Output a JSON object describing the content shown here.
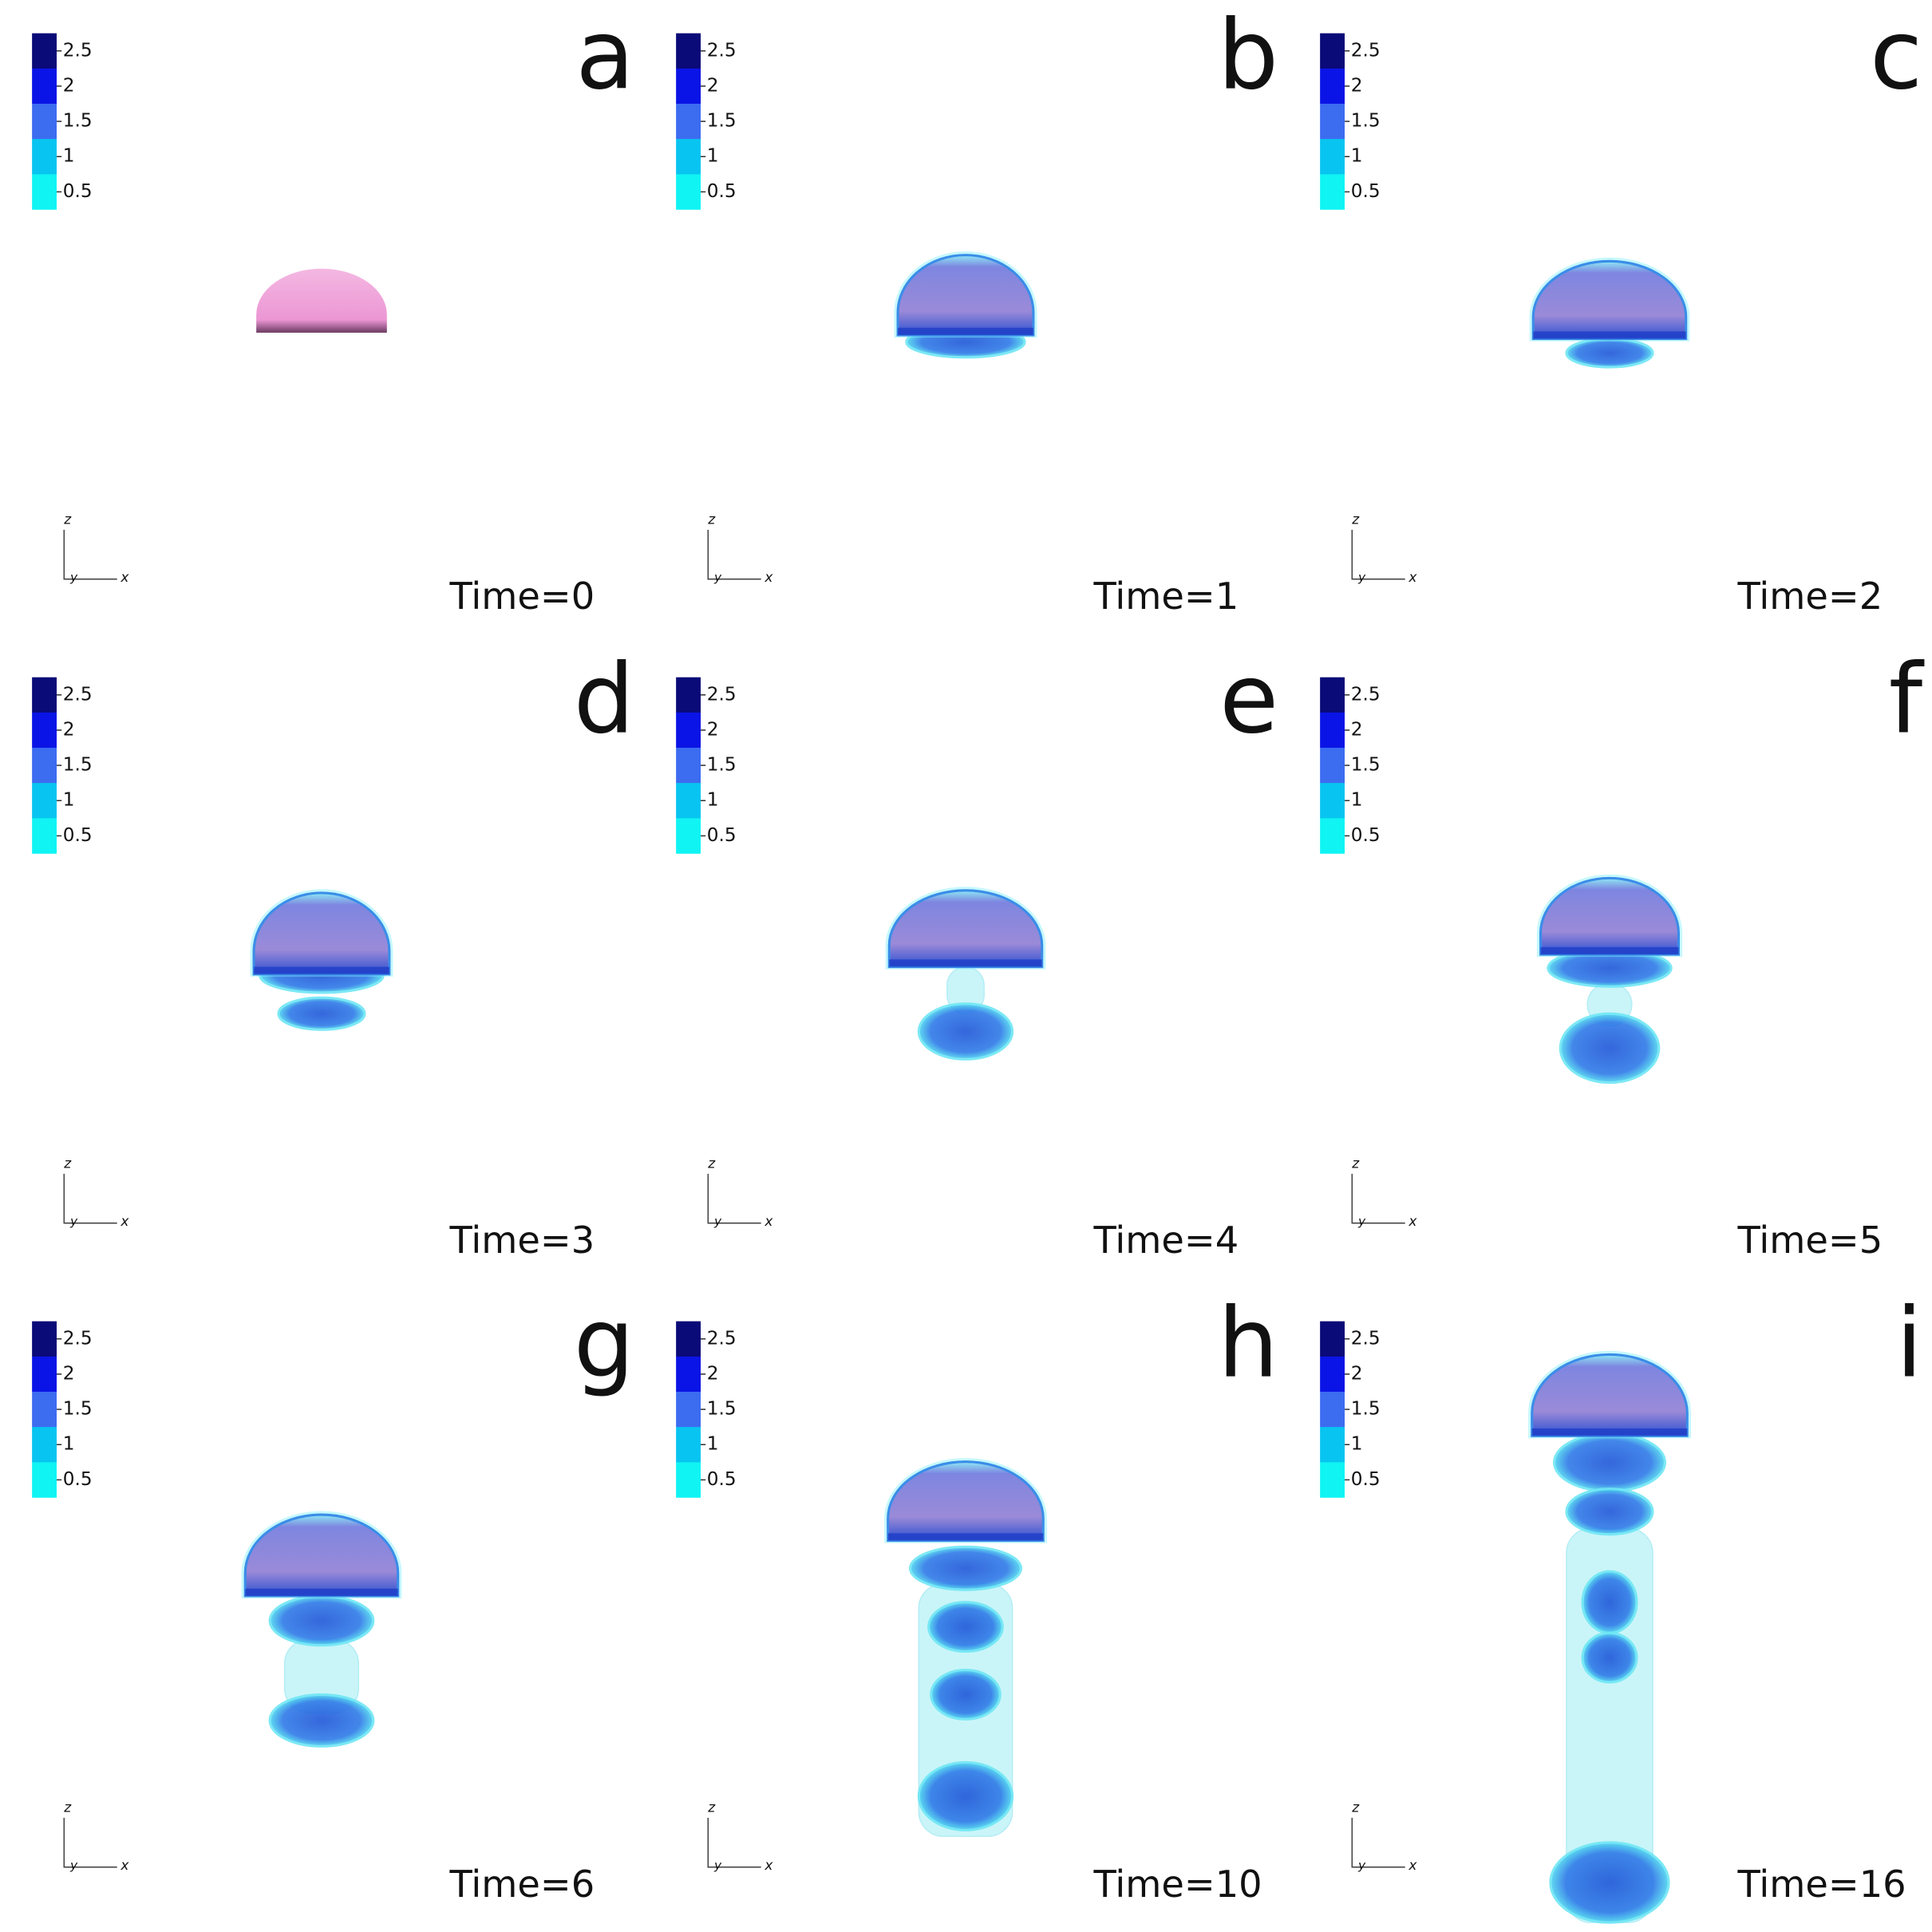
{
  "colorbar": {
    "ticks": [
      "2.5",
      "2",
      "1.5",
      "1",
      "0.5"
    ]
  },
  "axes": {
    "z": "z",
    "y": "y",
    "x": "x"
  },
  "panels": [
    {
      "letter": "a",
      "time": "Time=0"
    },
    {
      "letter": "b",
      "time": "Time=1"
    },
    {
      "letter": "c",
      "time": "Time=2"
    },
    {
      "letter": "d",
      "time": "Time=3"
    },
    {
      "letter": "e",
      "time": "Time=4"
    },
    {
      "letter": "f",
      "time": "Time=5"
    },
    {
      "letter": "g",
      "time": "Time=6"
    },
    {
      "letter": "h",
      "time": "Time=10"
    },
    {
      "letter": "i",
      "time": "Time=16"
    }
  ]
}
